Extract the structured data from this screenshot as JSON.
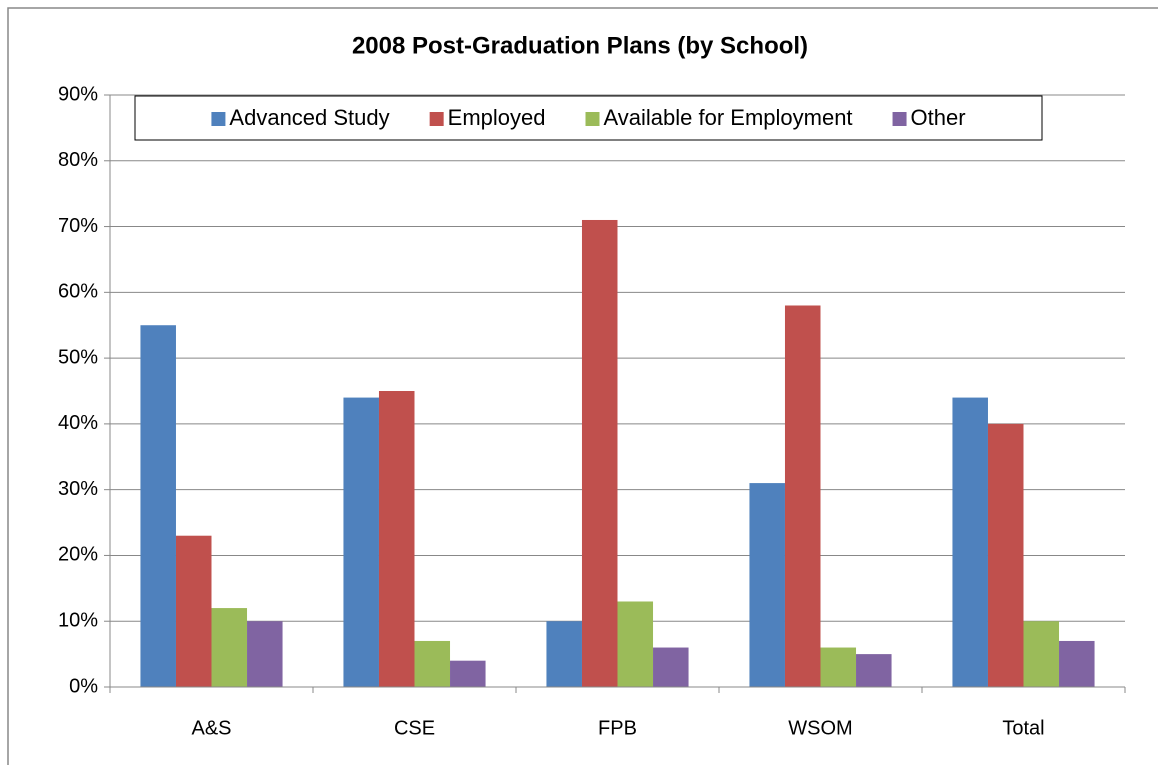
{
  "chart_data": {
    "type": "bar",
    "title": "2008 Post-Graduation Plans (by School)",
    "categories": [
      "A&S",
      "CSE",
      "FPB",
      "WSOM",
      "Total"
    ],
    "series": [
      {
        "name": "Advanced Study",
        "color": "#4f81bd",
        "values": [
          55,
          44,
          10,
          31,
          44
        ]
      },
      {
        "name": "Employed",
        "color": "#c0504d",
        "values": [
          23,
          45,
          71,
          58,
          40
        ]
      },
      {
        "name": "Available for Employment",
        "color": "#9bbb59",
        "values": [
          12,
          7,
          13,
          6,
          10
        ]
      },
      {
        "name": "Other",
        "color": "#8064a2",
        "values": [
          10,
          4,
          6,
          5,
          7
        ]
      }
    ],
    "ylim": [
      0,
      90
    ],
    "yticks": [
      {
        "value": 0,
        "label": "0%"
      },
      {
        "value": 10,
        "label": "10%"
      },
      {
        "value": 20,
        "label": "20%"
      },
      {
        "value": 30,
        "label": "30%"
      },
      {
        "value": 40,
        "label": "40%"
      },
      {
        "value": 50,
        "label": "50%"
      },
      {
        "value": 60,
        "label": "60%"
      },
      {
        "value": 70,
        "label": "70%"
      },
      {
        "value": 80,
        "label": "80%"
      },
      {
        "value": 90,
        "label": "90%"
      }
    ],
    "grid": true,
    "legend": "top"
  }
}
